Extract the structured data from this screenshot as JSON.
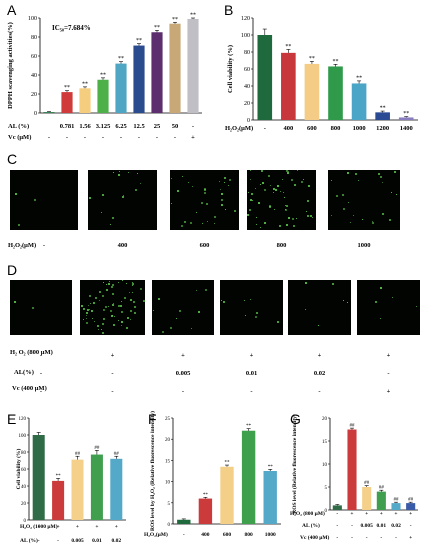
{
  "panels": {
    "A": {
      "letter": "A",
      "ic50": "IC₅₀=7.684%"
    },
    "B": {
      "letter": "B"
    },
    "C": {
      "letter": "C"
    },
    "D": {
      "letter": "D"
    },
    "E": {
      "letter": "E"
    },
    "F": {
      "letter": "F"
    },
    "G": {
      "letter": "G"
    }
  },
  "chart_data": [
    {
      "id": "A",
      "type": "bar",
      "ylabel": "DPPH scavenging activities(%)",
      "ylim": [
        0,
        100
      ],
      "yticks": [
        0,
        20,
        40,
        60,
        80,
        100
      ],
      "row_labels": [
        "AL (%)",
        "Vc (μM)"
      ],
      "categories": [
        "",
        "0.781",
        "1.56",
        "3.125",
        "6.25",
        "12.5",
        "25",
        "50",
        "-"
      ],
      "row2": [
        "-",
        "-",
        "-",
        "-",
        "-",
        "-",
        "-",
        "-",
        "+"
      ],
      "values": [
        1,
        22,
        26,
        35,
        52,
        71,
        85,
        94,
        99
      ],
      "errors": [
        0.5,
        1.5,
        1.5,
        2,
        2,
        2,
        2,
        1.5,
        1
      ],
      "sig": [
        "",
        "**",
        "**",
        "**",
        "**",
        "**",
        "**",
        "**",
        "**"
      ],
      "colors": [
        "#2e7d4f",
        "#d13a3a",
        "#f4cd7e",
        "#4db049",
        "#4fa6c4",
        "#2a4b8d",
        "#5c2e6e",
        "#c9a878",
        "#c1bfc6"
      ]
    },
    {
      "id": "B",
      "type": "bar",
      "ylabel": "Cell viability (%)",
      "ylim": [
        0,
        120
      ],
      "yticks": [
        0,
        20,
        40,
        60,
        80,
        100,
        120
      ],
      "row_labels": [
        "H₂O₂(μM)"
      ],
      "categories": [
        "-",
        "400",
        "600",
        "800",
        "1000",
        "1200",
        "1400"
      ],
      "values": [
        100,
        79,
        66,
        63,
        43,
        9,
        3
      ],
      "errors": [
        7,
        4,
        3,
        2.5,
        3,
        1.5,
        1
      ],
      "sig": [
        "",
        "**",
        "**",
        "**",
        "**",
        "**",
        "**"
      ],
      "colors": [
        "#1e6a3c",
        "#c8373b",
        "#f5cc85",
        "#2e9a4a",
        "#4ba5c6",
        "#2b4a94",
        "#8a7cc0"
      ]
    },
    {
      "id": "E",
      "type": "bar",
      "ylabel": "Cell viability (%)",
      "ylim": [
        0,
        120
      ],
      "yticks": [
        0,
        20,
        40,
        60,
        80,
        100,
        120
      ],
      "row_labels": [
        "H₂O₂ (1000 μM)",
        "AL (%)"
      ],
      "categories": [
        "-",
        "+",
        "+",
        "+",
        "+"
      ],
      "row2": [
        "-",
        "-",
        "0.005",
        "0.01",
        "0.02"
      ],
      "values": [
        100,
        46,
        71,
        77,
        72
      ],
      "errors": [
        3,
        3,
        4,
        5,
        3
      ],
      "sig": [
        "",
        "**",
        "##",
        "##",
        "##"
      ],
      "colors": [
        "#2f6b46",
        "#cc3b3b",
        "#f4d08a",
        "#3f9f4f",
        "#55a9c8"
      ]
    },
    {
      "id": "F",
      "type": "bar",
      "ylabel": "ROS level by H₂O₂ (Relative fluorescence intensity)",
      "ylim": [
        0,
        25
      ],
      "yticks": [
        0,
        5,
        10,
        15,
        20,
        25
      ],
      "row_labels": [
        "H₂O₂(μM)"
      ],
      "categories": [
        "-",
        "400",
        "600",
        "800",
        "1000"
      ],
      "values": [
        1,
        6,
        13.5,
        22,
        12.5
      ],
      "errors": [
        0.2,
        0.3,
        0.4,
        0.5,
        0.4
      ],
      "sig": [
        "",
        "**",
        "**",
        "**",
        "**"
      ],
      "colors": [
        "#1f6b3d",
        "#cc3b3b",
        "#f4cf88",
        "#3e9f4c",
        "#55a9c8"
      ]
    },
    {
      "id": "G",
      "type": "bar",
      "ylabel": "ROS level (Relative fluorescence intensity)",
      "ylim": [
        0,
        20
      ],
      "yticks": [
        0,
        5,
        10,
        15,
        20
      ],
      "row_labels": [
        "H₂O₂ (800 μM)",
        "AL (%)",
        "Vc (400 μM)"
      ],
      "categories": [
        "-",
        "+",
        "+",
        "+",
        "+",
        "+"
      ],
      "row2": [
        "-",
        "-",
        "0.005",
        "0.01",
        "0.02",
        "-"
      ],
      "row3": [
        "-",
        "-",
        "-",
        "-",
        "-",
        "+"
      ],
      "values": [
        1,
        17.5,
        5,
        4,
        1.5,
        1.5
      ],
      "errors": [
        0.2,
        0.3,
        0.3,
        0.3,
        0.2,
        0.2
      ],
      "sig": [
        "",
        "##",
        "##",
        "##",
        "##",
        "##"
      ],
      "colors": [
        "#2f6b46",
        "#cc3b3b",
        "#f4d08a",
        "#3f9f4f",
        "#55a9c8",
        "#3a5ba8"
      ]
    }
  ],
  "micrographs": {
    "C": {
      "row_label": "H₂O₂(μM)",
      "labels": [
        "-",
        "400",
        "600",
        "800",
        "1000"
      ],
      "dots": [
        3,
        14,
        30,
        55,
        22
      ]
    },
    "D": {
      "rows": [
        {
          "label": "H₂ O₂ (800 μM)",
          "values": [
            "-",
            "+",
            "+",
            "+",
            "+",
            "+"
          ]
        },
        {
          "label": "AL(%)",
          "values": [
            "-",
            "-",
            "0.005",
            "0.01",
            "0.02",
            "-"
          ]
        },
        {
          "label": "Vc (400 μM)",
          "values": [
            "-",
            "-",
            "-",
            "-",
            "-",
            "+"
          ]
        }
      ],
      "dots": [
        2,
        70,
        10,
        8,
        6,
        5
      ]
    }
  },
  "colors": {
    "dot": "#6df05a",
    "background": "#020402"
  }
}
